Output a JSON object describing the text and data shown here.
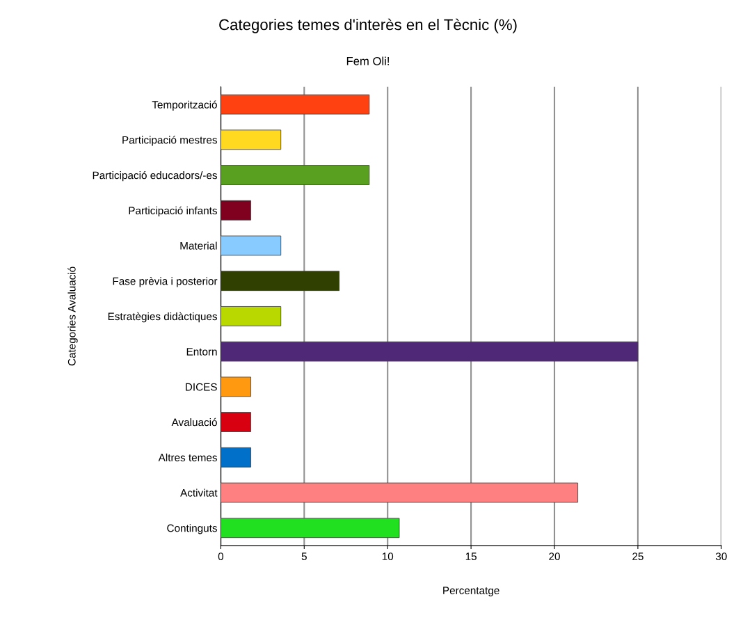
{
  "chart_data": {
    "type": "bar",
    "orientation": "horizontal",
    "title": "Categories temes d'interès en el Tècnic (%)",
    "subtitle": "Fem Oli!",
    "xlabel": "Percentatge",
    "ylabel": "Categories Avaluació",
    "categories": [
      "Temporització",
      "Participació mestres",
      "Participació educadors/-es",
      "Participació infants",
      "Material",
      "Fase prèvia i posterior",
      "Estratègies didàctiques",
      "Entorn",
      "DICES",
      "Avaluació",
      "Altres temes",
      "Activitat",
      "Continguts"
    ],
    "values": [
      8.9,
      3.6,
      8.9,
      1.8,
      3.6,
      7.1,
      3.6,
      25,
      1.8,
      1.8,
      1.8,
      21.4,
      10.7
    ],
    "colors": [
      "#ff4010",
      "#ffd820",
      "#5aa020",
      "#800020",
      "#88ccff",
      "#304000",
      "#b8d800",
      "#502878",
      "#ff9a10",
      "#d80010",
      "#0070c8",
      "#ff8080",
      "#20e020"
    ],
    "xlim": [
      0,
      30
    ],
    "xticks": [
      0,
      5,
      10,
      15,
      20,
      25,
      30
    ],
    "grid": "x",
    "legend": false
  }
}
